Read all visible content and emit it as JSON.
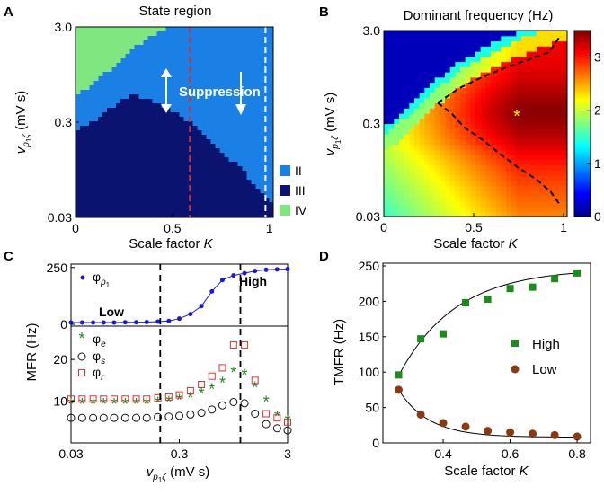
{
  "chart_data": [
    {
      "panel": "A",
      "type": "heatmap",
      "title": "State region",
      "xlabel": "Scale factor K",
      "ylabel": "v_{p1ζ} (mV s)",
      "xlim": [
        0,
        1.02
      ],
      "ylim": [
        0.03,
        3.0
      ],
      "yscale": "log",
      "xticks": [
        "0",
        "0.5",
        "1"
      ],
      "yticks": [
        "0.03",
        "0.3",
        "3.0"
      ],
      "legend": [
        "II",
        "III",
        "IV"
      ],
      "colors": {
        "II": "#1a80e6",
        "III": "#0a1470",
        "IV": "#80e680",
        "red_line": "#cc3333",
        "white_line": "#ffffff"
      },
      "annotation": "Suppression",
      "lines": [
        {
          "x": 0.59,
          "color": "red",
          "style": "dashed"
        },
        {
          "x": 0.98,
          "color": "white",
          "style": "dashed"
        }
      ],
      "boundary_IV_top": {
        "x": [
          0,
          0.1,
          0.2,
          0.3,
          0.4,
          0.48
        ],
        "y": [
          0.55,
          0.78,
          1.15,
          1.75,
          2.5,
          3.0
        ]
      },
      "boundary_III_top": {
        "x": [
          0,
          0.1,
          0.2,
          0.3,
          0.4,
          0.5,
          0.6,
          0.7,
          0.8,
          0.9,
          0.98,
          1.02
        ],
        "y": [
          0.25,
          0.3,
          0.45,
          0.6,
          0.48,
          0.4,
          0.28,
          0.18,
          0.12,
          0.075,
          0.05,
          0.04
        ]
      }
    },
    {
      "panel": "B",
      "type": "heatmap",
      "title": "Dominant frequency (Hz)",
      "xlabel": "Scale factor K",
      "ylabel": "v_{p1ζ} (mV s)",
      "xlim": [
        0,
        1.02
      ],
      "ylim": [
        0.03,
        3.0
      ],
      "yscale": "log",
      "xticks": [
        "0",
        "0.5",
        "1"
      ],
      "yticks": [
        "0.03",
        "0.3",
        "3.0"
      ],
      "colorbar": {
        "min": 0,
        "max": 3.5,
        "ticks": [
          "0",
          "1",
          "2",
          "3"
        ]
      },
      "marker": {
        "x": 0.74,
        "y": 0.37,
        "symbol": "*",
        "color": "yellow"
      },
      "contour_upper": {
        "x": [
          0.3,
          0.42,
          0.55,
          0.68,
          0.8,
          0.92,
          0.98
        ],
        "y": [
          0.5,
          0.72,
          0.95,
          1.2,
          1.45,
          1.75,
          2.6
        ]
      },
      "contour_lower": {
        "x": [
          0.3,
          0.38,
          0.45,
          0.55,
          0.65,
          0.75,
          0.85,
          0.93,
          0.98
        ],
        "y": [
          0.5,
          0.38,
          0.27,
          0.2,
          0.14,
          0.1,
          0.075,
          0.055,
          0.04
        ]
      }
    },
    {
      "panel": "C",
      "type": "scatter",
      "xlabel": "v_{p1ζ} (mV s)",
      "ylabel": "MFR (Hz)",
      "xscale": "log",
      "xlim": [
        0.03,
        3.0
      ],
      "xticks": [
        "0.03",
        "0.3",
        "3"
      ],
      "top": {
        "ylim": [
          0,
          250
        ],
        "yticks": [
          "0",
          "250"
        ],
        "annotations": [
          "Low",
          "High"
        ],
        "series": [
          {
            "name": "φ_{p1}",
            "color": "#1a1acc",
            "x": [
              0.03,
              0.038,
              0.048,
              0.06,
              0.075,
              0.095,
              0.12,
              0.15,
              0.19,
              0.24,
              0.3,
              0.38,
              0.48,
              0.6,
              0.75,
              0.95,
              1.2,
              1.5,
              1.9,
              2.4,
              3.0
            ],
            "y": [
              8,
              8,
              8,
              8,
              8,
              9,
              9,
              10,
              12,
              15,
              25,
              45,
              80,
              145,
              195,
              215,
              225,
              235,
              240,
              242,
              243
            ]
          }
        ]
      },
      "bottom": {
        "ylim": [
          0,
          27
        ],
        "yticks": [
          "10",
          "20"
        ],
        "series": [
          {
            "name": "φ_e",
            "color": "#228822",
            "marker": "*",
            "x": [
              0.03,
              0.038,
              0.048,
              0.06,
              0.075,
              0.095,
              0.12,
              0.15,
              0.19,
              0.24,
              0.3,
              0.38,
              0.48,
              0.6,
              0.75,
              0.95,
              1.2,
              1.5,
              1.9,
              2.4,
              3.0
            ],
            "y": [
              9.5,
              9.5,
              9.5,
              9.5,
              9.5,
              9.5,
              9.5,
              9.5,
              9.8,
              10,
              10.5,
              11,
              12,
              13,
              14.5,
              17,
              16.5,
              13.5,
              10,
              6.5,
              5.5
            ]
          },
          {
            "name": "φ_s",
            "color": "#111111",
            "marker": "o",
            "x": [
              0.03,
              0.038,
              0.048,
              0.06,
              0.075,
              0.095,
              0.12,
              0.15,
              0.19,
              0.24,
              0.3,
              0.38,
              0.48,
              0.6,
              0.75,
              0.95,
              1.2,
              1.5,
              1.9,
              2.4,
              3.0
            ],
            "y": [
              6,
              6,
              6,
              6,
              6,
              6,
              6,
              6,
              6.2,
              6.3,
              6.5,
              6.8,
              7.2,
              8,
              9,
              9.8,
              9.5,
              7,
              4.5,
              3.5,
              3
            ]
          },
          {
            "name": "φ_r",
            "color": "#dd3333",
            "marker": "s",
            "x": [
              0.03,
              0.038,
              0.048,
              0.06,
              0.075,
              0.095,
              0.12,
              0.15,
              0.19,
              0.24,
              0.3,
              0.38,
              0.48,
              0.6,
              0.75,
              0.95,
              1.2,
              1.5,
              1.9,
              2.4,
              3.0
            ],
            "y": [
              10.5,
              10.5,
              10.5,
              10.5,
              10.5,
              10.5,
              10.5,
              10.5,
              10.8,
              11,
              11.5,
              12.5,
              14,
              16,
              18,
              23.5,
              23.5,
              15,
              7,
              6,
              5
            ]
          }
        ]
      },
      "lines": [
        {
          "x": 0.2,
          "style": "dashed"
        },
        {
          "x": 1.1,
          "style": "dashed"
        }
      ]
    },
    {
      "panel": "D",
      "type": "scatter",
      "xlabel": "Scale factor K",
      "ylabel": "TMFR (Hz)",
      "xlim": [
        0.22,
        0.84
      ],
      "ylim": [
        0,
        250
      ],
      "xticks": [
        "0.4",
        "0.6",
        "0.8"
      ],
      "yticks": [
        "0",
        "50",
        "100",
        "150",
        "200",
        "250"
      ],
      "legend": "center-right",
      "series": [
        {
          "name": "High",
          "color": "#1a8c1a",
          "marker": "s",
          "x": [
            0.267,
            0.333,
            0.4,
            0.467,
            0.533,
            0.6,
            0.667,
            0.733,
            0.8
          ],
          "y": [
            96,
            147,
            154,
            198,
            203,
            218,
            220,
            232,
            240
          ]
        },
        {
          "name": "Low",
          "color": "#8b3a10",
          "marker": "o",
          "x": [
            0.267,
            0.333,
            0.4,
            0.467,
            0.533,
            0.6,
            0.667,
            0.733,
            0.8
          ],
          "y": [
            75,
            40,
            28,
            23,
            17,
            15,
            13,
            11,
            9
          ]
        }
      ]
    }
  ]
}
